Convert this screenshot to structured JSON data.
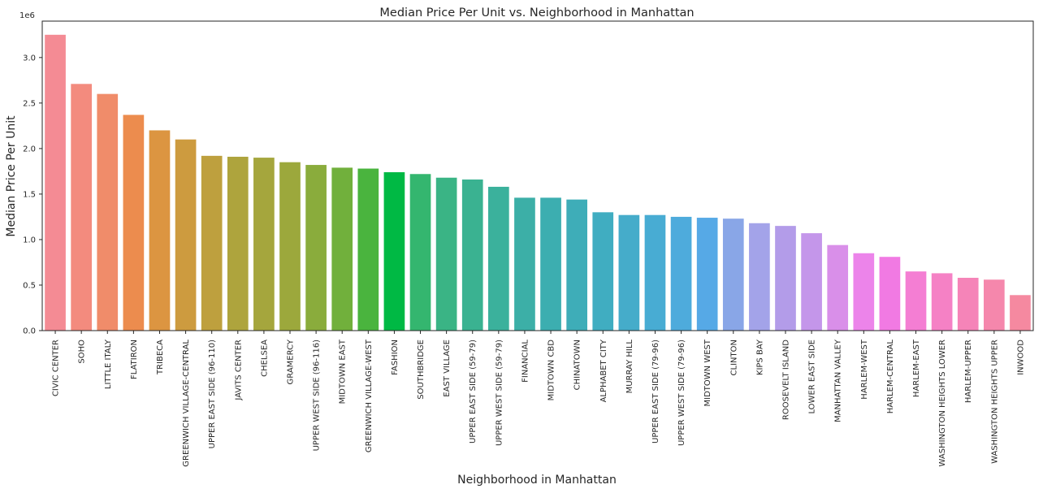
{
  "chart_data": {
    "type": "bar",
    "title": "Median Price Per Unit vs. Neighborhood in Manhattan",
    "xlabel": "Neighborhood in Manhattan",
    "ylabel": "Median Price Per Unit",
    "y_offset_label": "1e6",
    "ylim": [
      0,
      3.4
    ],
    "y_scale": 1000000,
    "yticks": [
      {
        "value": 0.0,
        "label": "0.0"
      },
      {
        "value": 0.5,
        "label": "0.5"
      },
      {
        "value": 1.0,
        "label": "1.0"
      },
      {
        "value": 1.5,
        "label": "1.5"
      },
      {
        "value": 2.0,
        "label": "2.0"
      },
      {
        "value": 2.5,
        "label": "2.5"
      },
      {
        "value": 3.0,
        "label": "3.0"
      }
    ],
    "grid": false,
    "categories": [
      "CIVIC CENTER",
      "SOHO",
      "LITTLE ITALY",
      "FLATIRON",
      "TRIBECA",
      "GREENWICH VILLAGE-CENTRAL",
      "UPPER EAST SIDE (96-110)",
      "JAVITS CENTER",
      "CHELSEA",
      "GRAMERCY",
      "UPPER WEST SIDE (96-116)",
      "MIDTOWN EAST",
      "GREENWICH VILLAGE-WEST",
      "FASHION",
      "SOUTHBRIDGE",
      "EAST VILLAGE",
      "UPPER EAST SIDE (59-79)",
      "UPPER WEST SIDE (59-79)",
      "FINANCIAL",
      "MIDTOWN CBD",
      "CHINATOWN",
      "ALPHABET CITY",
      "MURRAY HILL",
      "UPPER EAST SIDE (79-96)",
      "UPPER WEST SIDE (79-96)",
      "MIDTOWN WEST",
      "CLINTON",
      "KIPS BAY",
      "ROOSEVELT ISLAND",
      "LOWER EAST SIDE",
      "MANHATTAN VALLEY",
      "HARLEM-WEST",
      "HARLEM-CENTRAL",
      "HARLEM-EAST",
      "WASHINGTON HEIGHTS LOWER",
      "HARLEM-UPPER",
      "WASHINGTON HEIGHTS UPPER",
      "INWOOD"
    ],
    "values": [
      3.25,
      2.71,
      2.6,
      2.37,
      2.2,
      2.1,
      1.92,
      1.91,
      1.9,
      1.85,
      1.82,
      1.79,
      1.78,
      1.74,
      1.72,
      1.68,
      1.66,
      1.58,
      1.46,
      1.46,
      1.44,
      1.3,
      1.27,
      1.27,
      1.25,
      1.24,
      1.23,
      1.18,
      1.15,
      1.07,
      0.94,
      0.85,
      0.81,
      0.65,
      0.63,
      0.58,
      0.56,
      0.39
    ],
    "colors": [
      "#f48b94",
      "#f38b7e",
      "#f08c6a",
      "#ec8c4e",
      "#dc9541",
      "#cd9b3f",
      "#bea03e",
      "#aea43d",
      "#a5a63d",
      "#9ca83c",
      "#8aac3c",
      "#71b03c",
      "#4ab43e",
      "#00b944",
      "#34b66f",
      "#3ab485",
      "#3ab291",
      "#3bb19c",
      "#3cafa7",
      "#3caeb0",
      "#3eadb8",
      "#40adc1",
      "#45acca",
      "#48acd3",
      "#4eabdc",
      "#56a9e6",
      "#89a6e7",
      "#a3a3e9",
      "#b39ce9",
      "#c496ea",
      "#d98fe9",
      "#ec84ea",
      "#f17ae3",
      "#f47ed3",
      "#f581c5",
      "#f584b8",
      "#f587ac",
      "#f589a0"
    ]
  }
}
